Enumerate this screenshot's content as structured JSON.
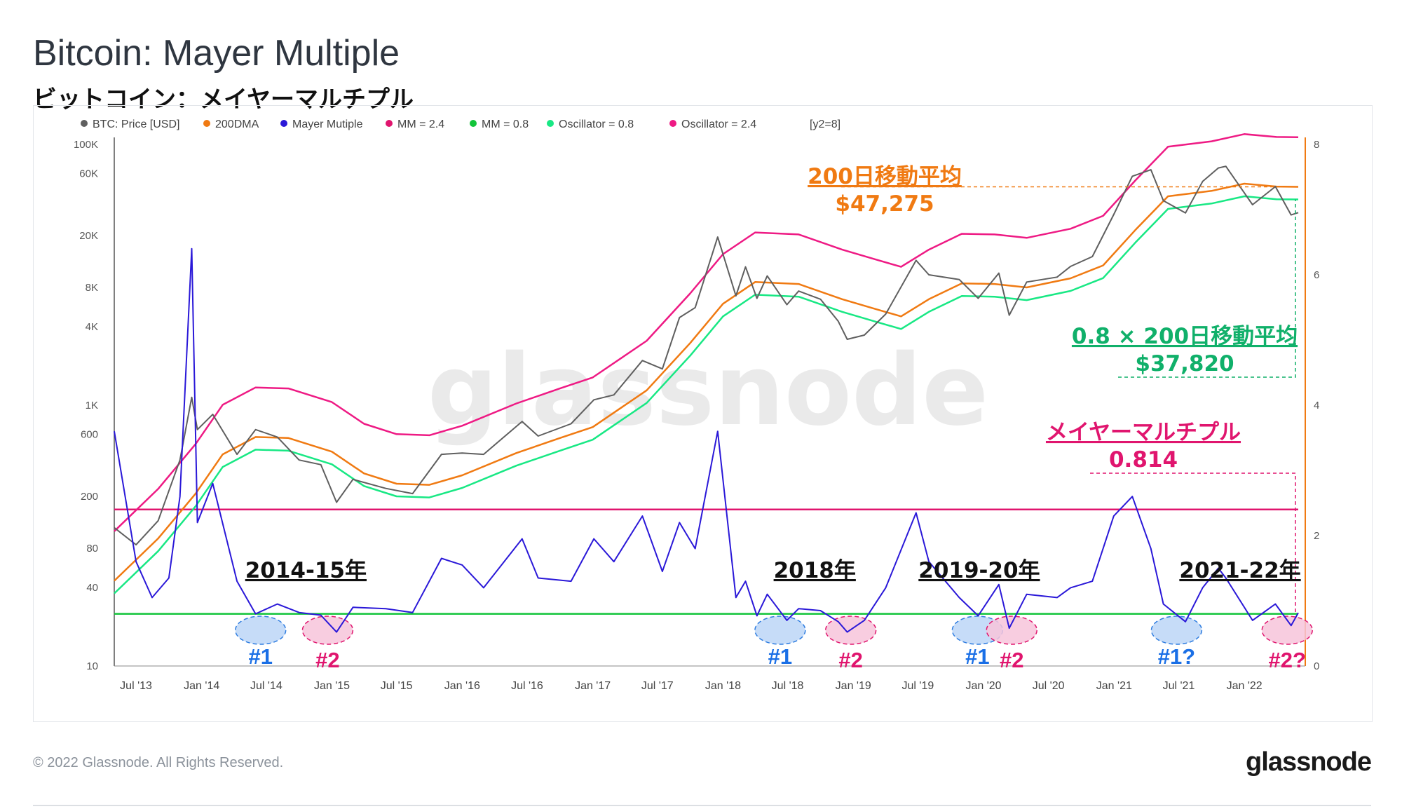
{
  "header": {
    "title": "Bitcoin: Mayer Multiple",
    "subtitle": "ビットコイン：メイヤーマルチプル"
  },
  "watermark": "glassnode",
  "footer": {
    "copyright": "© 2022 Glassnode. All Rights Reserved.",
    "logo": "glassnode"
  },
  "legend": [
    {
      "label": "BTC: Price [USD]",
      "color": "#5f5f5f"
    },
    {
      "label": "200DMA",
      "color": "#f07a12"
    },
    {
      "label": "Mayer Mutiple",
      "color": "#2a18d8"
    },
    {
      "label": "MM = 2.4",
      "color": "#e0156e"
    },
    {
      "label": "MM = 0.8",
      "color": "#12c43a"
    },
    {
      "label": "Oscillator = 0.8",
      "color": "#18e884"
    },
    {
      "label": "Oscillator = 2.4",
      "color": "#ee1a84"
    }
  ],
  "legend_extra": "[y2=8]",
  "annotations": {
    "dma_label": "200日移動平均",
    "dma_value": "$47,275",
    "osc_label": "0.8 × 200日移動平均",
    "osc_value": "$37,820",
    "mm_label": "メイヤーマルチプル",
    "mm_value": "0.814",
    "periods": [
      {
        "label": "2014-15年",
        "date": "2014-10-20"
      },
      {
        "label": "2018年",
        "date": "2018-09-15"
      },
      {
        "label": "2019-20年",
        "date": "2019-12-20"
      },
      {
        "label": "2021-22年",
        "date": "2021-12-20"
      }
    ],
    "markers": [
      {
        "text": "#1",
        "date": "2014-06-15",
        "type": "blue"
      },
      {
        "text": "#2",
        "date": "2014-12-20",
        "type": "pink"
      },
      {
        "text": "#1",
        "date": "2018-06-10",
        "type": "blue"
      },
      {
        "text": "#2",
        "date": "2018-12-25",
        "type": "pink"
      },
      {
        "text": "#1",
        "date": "2019-12-15",
        "type": "blue"
      },
      {
        "text": "#2",
        "date": "2020-03-20",
        "type": "pink"
      },
      {
        "text": "#1?",
        "date": "2021-06-25",
        "type": "blue"
      },
      {
        "text": "#2?",
        "date": "2022-05-01",
        "type": "pink"
      }
    ]
  },
  "chart_data": {
    "type": "line",
    "x_start": "2013-05-01",
    "x_end": "2022-06-01",
    "x_ticks": [
      "Jul '13",
      "Jan '14",
      "Jul '14",
      "Jan '15",
      "Jul '15",
      "Jan '16",
      "Jul '16",
      "Jan '17",
      "Jul '17",
      "Jan '18",
      "Jul '18",
      "Jan '19",
      "Jul '19",
      "Jan '20",
      "Jul '20",
      "Jan '21",
      "Jul '21",
      "Jan '22"
    ],
    "y_left": {
      "scale": "log",
      "ticks": [
        "100K",
        "60K",
        "20K",
        "8K",
        "4K",
        "1K",
        "600",
        "200",
        "80",
        "40",
        "10"
      ],
      "tick_values": [
        100000,
        60000,
        20000,
        8000,
        4000,
        1000,
        600,
        200,
        80,
        40,
        10
      ],
      "ylim": [
        10,
        100000
      ]
    },
    "y_right": {
      "scale": "linear",
      "ticks": [
        "8",
        "6",
        "4",
        "2",
        "0"
      ],
      "tick_values": [
        8,
        6,
        4,
        2,
        0
      ],
      "ylim": [
        0,
        8
      ]
    },
    "series": [
      {
        "name": "BTC: Price [USD]",
        "axis": "left",
        "color": "#5f5f5f",
        "points": [
          [
            "2013-05-01",
            115
          ],
          [
            "2013-07-01",
            85
          ],
          [
            "2013-09-01",
            130
          ],
          [
            "2013-11-01",
            380
          ],
          [
            "2013-12-04",
            1150
          ],
          [
            "2013-12-20",
            650
          ],
          [
            "2014-02-01",
            850
          ],
          [
            "2014-04-10",
            420
          ],
          [
            "2014-06-01",
            650
          ],
          [
            "2014-08-01",
            570
          ],
          [
            "2014-10-01",
            380
          ],
          [
            "2014-12-01",
            350
          ],
          [
            "2015-01-14",
            180
          ],
          [
            "2015-03-01",
            270
          ],
          [
            "2015-06-01",
            230
          ],
          [
            "2015-08-15",
            210
          ],
          [
            "2015-11-04",
            420
          ],
          [
            "2016-01-01",
            430
          ],
          [
            "2016-03-01",
            420
          ],
          [
            "2016-06-17",
            750
          ],
          [
            "2016-08-01",
            580
          ],
          [
            "2016-11-01",
            720
          ],
          [
            "2017-01-04",
            1100
          ],
          [
            "2017-03-01",
            1200
          ],
          [
            "2017-05-20",
            2200
          ],
          [
            "2017-07-15",
            1900
          ],
          [
            "2017-09-01",
            4700
          ],
          [
            "2017-10-15",
            5600
          ],
          [
            "2017-12-17",
            19500
          ],
          [
            "2018-02-06",
            6900
          ],
          [
            "2018-03-05",
            11500
          ],
          [
            "2018-04-06",
            6600
          ],
          [
            "2018-05-05",
            9800
          ],
          [
            "2018-06-29",
            5900
          ],
          [
            "2018-08-01",
            7500
          ],
          [
            "2018-10-01",
            6500
          ],
          [
            "2018-11-20",
            4400
          ],
          [
            "2018-12-15",
            3200
          ],
          [
            "2019-02-01",
            3450
          ],
          [
            "2019-04-02",
            5000
          ],
          [
            "2019-06-26",
            12900
          ],
          [
            "2019-08-01",
            10000
          ],
          [
            "2019-10-25",
            9200
          ],
          [
            "2019-12-17",
            6600
          ],
          [
            "2020-02-13",
            10300
          ],
          [
            "2020-03-13",
            4900
          ],
          [
            "2020-05-01",
            8800
          ],
          [
            "2020-07-25",
            9600
          ],
          [
            "2020-09-01",
            11600
          ],
          [
            "2020-11-01",
            13800
          ],
          [
            "2020-12-31",
            29000
          ],
          [
            "2021-02-21",
            57000
          ],
          [
            "2021-04-14",
            64000
          ],
          [
            "2021-05-19",
            37000
          ],
          [
            "2021-07-20",
            29800
          ],
          [
            "2021-09-06",
            52000
          ],
          [
            "2021-10-20",
            66000
          ],
          [
            "2021-11-10",
            68000
          ],
          [
            "2022-01-24",
            34500
          ],
          [
            "2022-03-29",
            47500
          ],
          [
            "2022-05-12",
            28800
          ],
          [
            "2022-06-01",
            30000
          ]
        ]
      },
      {
        "name": "200DMA",
        "axis": "left",
        "color": "#f07a12",
        "points": [
          [
            "2013-05-01",
            45
          ],
          [
            "2013-09-01",
            95
          ],
          [
            "2013-12-15",
            210
          ],
          [
            "2014-03-01",
            420
          ],
          [
            "2014-06-01",
            570
          ],
          [
            "2014-09-01",
            560
          ],
          [
            "2015-01-01",
            440
          ],
          [
            "2015-04-01",
            300
          ],
          [
            "2015-07-01",
            250
          ],
          [
            "2015-10-01",
            245
          ],
          [
            "2016-01-01",
            290
          ],
          [
            "2016-06-01",
            430
          ],
          [
            "2016-10-01",
            560
          ],
          [
            "2017-01-01",
            680
          ],
          [
            "2017-06-01",
            1300
          ],
          [
            "2017-10-01",
            3000
          ],
          [
            "2018-01-01",
            6000
          ],
          [
            "2018-04-01",
            8800
          ],
          [
            "2018-08-01",
            8500
          ],
          [
            "2018-12-01",
            6500
          ],
          [
            "2019-03-01",
            5500
          ],
          [
            "2019-05-15",
            4800
          ],
          [
            "2019-08-01",
            6500
          ],
          [
            "2019-11-01",
            8600
          ],
          [
            "2020-02-01",
            8500
          ],
          [
            "2020-05-01",
            8000
          ],
          [
            "2020-09-01",
            9400
          ],
          [
            "2020-12-01",
            11800
          ],
          [
            "2021-03-01",
            22000
          ],
          [
            "2021-06-01",
            40000
          ],
          [
            "2021-10-01",
            44000
          ],
          [
            "2022-01-01",
            50000
          ],
          [
            "2022-04-01",
            47500
          ],
          [
            "2022-06-01",
            47275
          ]
        ]
      },
      {
        "name": "Mayer Mutiple",
        "axis": "right",
        "color": "#2a18d8",
        "points": [
          [
            "2013-05-01",
            3.6
          ],
          [
            "2013-07-01",
            1.6
          ],
          [
            "2013-08-15",
            1.05
          ],
          [
            "2013-10-01",
            1.35
          ],
          [
            "2013-11-01",
            2.6
          ],
          [
            "2013-12-04",
            6.4
          ],
          [
            "2013-12-20",
            2.2
          ],
          [
            "2014-02-01",
            2.8
          ],
          [
            "2014-04-10",
            1.3
          ],
          [
            "2014-06-01",
            0.8
          ],
          [
            "2014-08-01",
            0.95
          ],
          [
            "2014-10-01",
            0.82
          ],
          [
            "2014-12-01",
            0.78
          ],
          [
            "2015-01-14",
            0.52
          ],
          [
            "2015-03-01",
            0.9
          ],
          [
            "2015-06-01",
            0.88
          ],
          [
            "2015-08-15",
            0.82
          ],
          [
            "2015-11-04",
            1.65
          ],
          [
            "2016-01-01",
            1.55
          ],
          [
            "2016-03-01",
            1.2
          ],
          [
            "2016-06-17",
            1.95
          ],
          [
            "2016-08-01",
            1.35
          ],
          [
            "2016-11-01",
            1.3
          ],
          [
            "2017-01-04",
            1.95
          ],
          [
            "2017-03-01",
            1.6
          ],
          [
            "2017-05-20",
            2.3
          ],
          [
            "2017-07-15",
            1.45
          ],
          [
            "2017-09-01",
            2.2
          ],
          [
            "2017-10-15",
            1.8
          ],
          [
            "2017-12-17",
            3.6
          ],
          [
            "2018-02-06",
            1.05
          ],
          [
            "2018-03-05",
            1.3
          ],
          [
            "2018-04-06",
            0.77
          ],
          [
            "2018-05-05",
            1.1
          ],
          [
            "2018-06-29",
            0.7
          ],
          [
            "2018-08-01",
            0.88
          ],
          [
            "2018-10-01",
            0.85
          ],
          [
            "2018-11-20",
            0.68
          ],
          [
            "2018-12-15",
            0.52
          ],
          [
            "2019-02-01",
            0.7
          ],
          [
            "2019-04-02",
            1.2
          ],
          [
            "2019-06-26",
            2.35
          ],
          [
            "2019-08-01",
            1.6
          ],
          [
            "2019-10-25",
            1.05
          ],
          [
            "2019-12-17",
            0.77
          ],
          [
            "2020-02-13",
            1.25
          ],
          [
            "2020-03-13",
            0.58
          ],
          [
            "2020-05-01",
            1.1
          ],
          [
            "2020-07-25",
            1.05
          ],
          [
            "2020-09-01",
            1.2
          ],
          [
            "2020-11-01",
            1.3
          ],
          [
            "2020-12-31",
            2.3
          ],
          [
            "2021-02-21",
            2.6
          ],
          [
            "2021-04-14",
            1.8
          ],
          [
            "2021-05-19",
            0.95
          ],
          [
            "2021-07-20",
            0.68
          ],
          [
            "2021-09-06",
            1.2
          ],
          [
            "2021-10-20",
            1.5
          ],
          [
            "2021-11-10",
            1.35
          ],
          [
            "2022-01-24",
            0.7
          ],
          [
            "2022-03-29",
            0.95
          ],
          [
            "2022-05-12",
            0.62
          ],
          [
            "2022-06-01",
            0.814
          ]
        ]
      },
      {
        "name": "Oscillator = 2.4",
        "axis": "left",
        "color": "#ee1a84",
        "points": [
          [
            "2013-05-01",
            108
          ],
          [
            "2013-09-01",
            228
          ],
          [
            "2013-12-15",
            504
          ],
          [
            "2014-03-01",
            1008
          ],
          [
            "2014-06-01",
            1368
          ],
          [
            "2014-09-01",
            1344
          ],
          [
            "2015-01-01",
            1056
          ],
          [
            "2015-04-01",
            720
          ],
          [
            "2015-07-01",
            600
          ],
          [
            "2015-10-01",
            588
          ],
          [
            "2016-01-01",
            696
          ],
          [
            "2016-06-01",
            1032
          ],
          [
            "2016-10-01",
            1344
          ],
          [
            "2017-01-01",
            1632
          ],
          [
            "2017-06-01",
            3120
          ],
          [
            "2017-10-01",
            7200
          ],
          [
            "2018-01-01",
            14400
          ],
          [
            "2018-04-01",
            21120
          ],
          [
            "2018-08-01",
            20400
          ],
          [
            "2018-12-01",
            15600
          ],
          [
            "2019-03-01",
            13200
          ],
          [
            "2019-05-15",
            11520
          ],
          [
            "2019-08-01",
            15600
          ],
          [
            "2019-11-01",
            20640
          ],
          [
            "2020-02-01",
            20400
          ],
          [
            "2020-05-01",
            19200
          ],
          [
            "2020-09-01",
            22560
          ],
          [
            "2020-12-01",
            28320
          ],
          [
            "2021-03-01",
            52800
          ],
          [
            "2021-06-01",
            96000
          ],
          [
            "2021-10-01",
            105600
          ],
          [
            "2022-01-01",
            120000
          ],
          [
            "2022-04-01",
            114000
          ],
          [
            "2022-06-01",
            113460
          ]
        ]
      },
      {
        "name": "Oscillator = 0.8",
        "axis": "left",
        "color": "#18e884",
        "points": [
          [
            "2013-05-01",
            36
          ],
          [
            "2013-09-01",
            76
          ],
          [
            "2013-12-15",
            168
          ],
          [
            "2014-03-01",
            336
          ],
          [
            "2014-06-01",
            456
          ],
          [
            "2014-09-01",
            448
          ],
          [
            "2015-01-01",
            352
          ],
          [
            "2015-04-01",
            240
          ],
          [
            "2015-07-01",
            200
          ],
          [
            "2015-10-01",
            196
          ],
          [
            "2016-01-01",
            232
          ],
          [
            "2016-06-01",
            344
          ],
          [
            "2016-10-01",
            448
          ],
          [
            "2017-01-01",
            544
          ],
          [
            "2017-06-01",
            1040
          ],
          [
            "2017-10-01",
            2400
          ],
          [
            "2018-01-01",
            4800
          ],
          [
            "2018-04-01",
            7040
          ],
          [
            "2018-08-01",
            6800
          ],
          [
            "2018-12-01",
            5200
          ],
          [
            "2019-03-01",
            4400
          ],
          [
            "2019-05-15",
            3840
          ],
          [
            "2019-08-01",
            5200
          ],
          [
            "2019-11-01",
            6880
          ],
          [
            "2020-02-01",
            6800
          ],
          [
            "2020-05-01",
            6400
          ],
          [
            "2020-09-01",
            7520
          ],
          [
            "2020-12-01",
            9440
          ],
          [
            "2021-03-01",
            17600
          ],
          [
            "2021-06-01",
            32000
          ],
          [
            "2021-10-01",
            35200
          ],
          [
            "2022-01-01",
            40000
          ],
          [
            "2022-04-01",
            38000
          ],
          [
            "2022-06-01",
            37820
          ]
        ]
      }
    ],
    "hlines": [
      {
        "name": "MM = 2.4",
        "axis": "right",
        "value": 2.4,
        "color": "#e0156e"
      },
      {
        "name": "MM = 0.8",
        "axis": "right",
        "value": 0.8,
        "color": "#12c43a"
      }
    ],
    "grid": false,
    "legend_position": "top-left"
  }
}
